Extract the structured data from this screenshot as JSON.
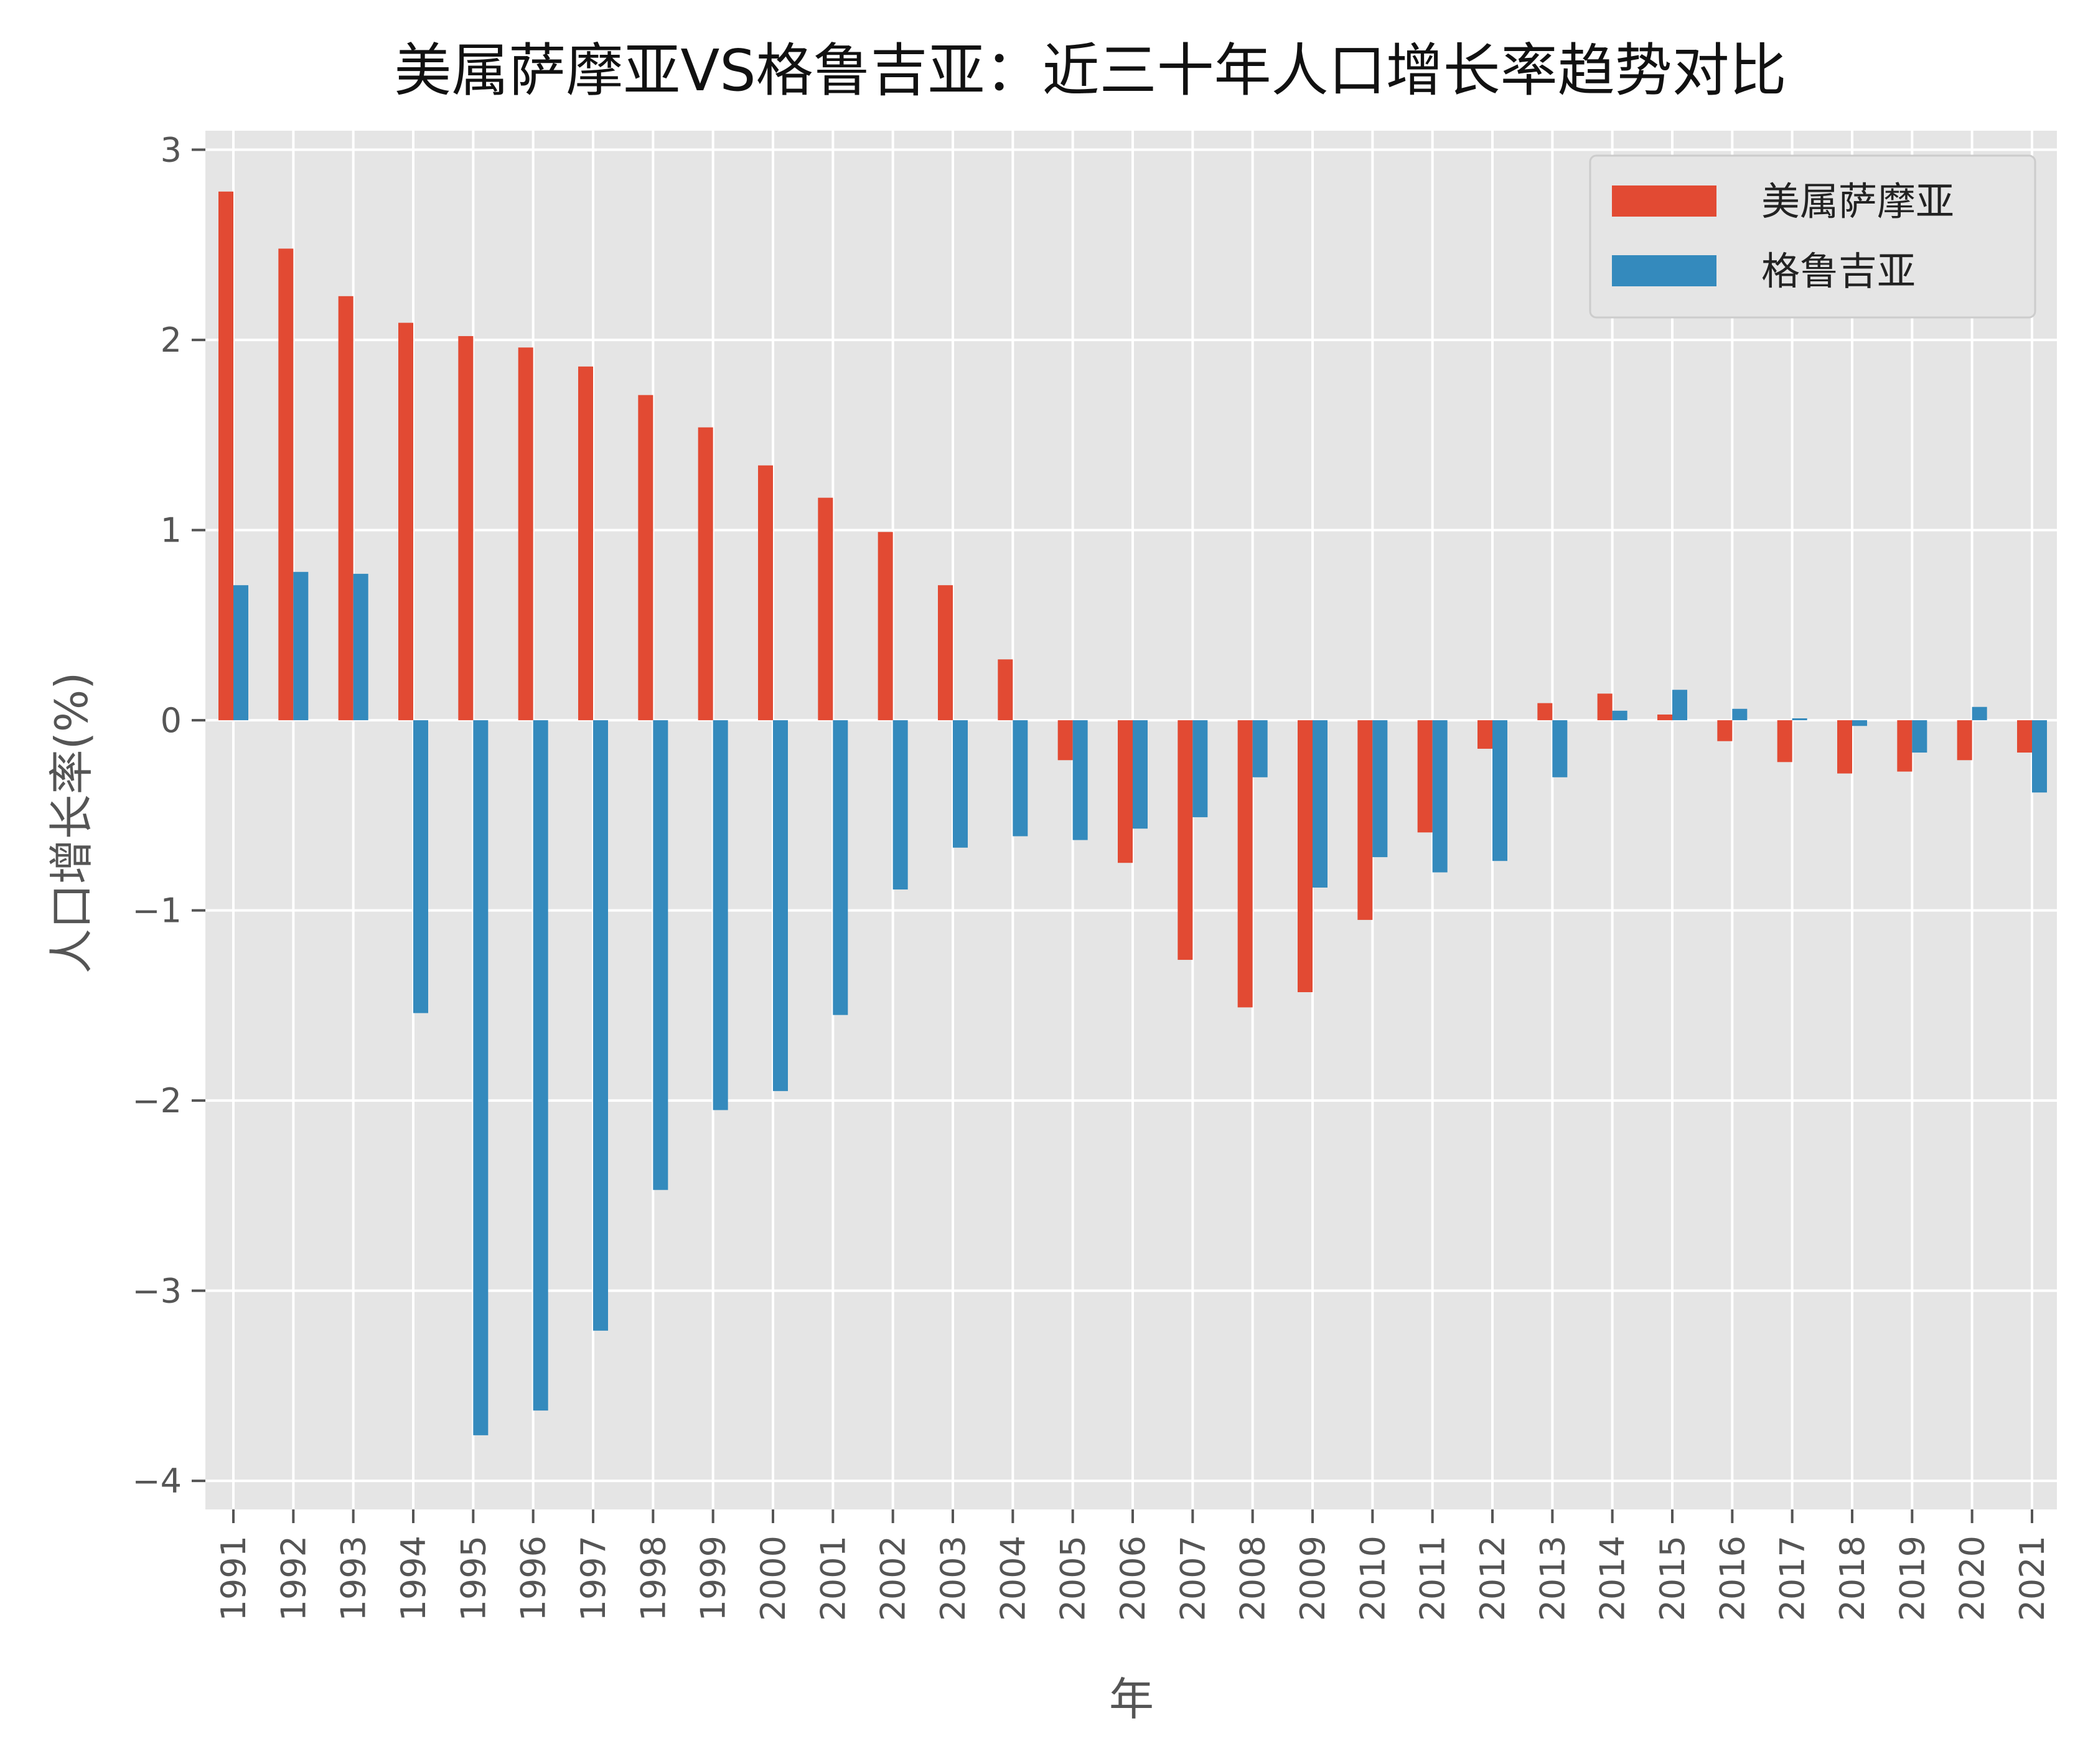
{
  "chart_data": {
    "type": "bar",
    "title": "美属萨摩亚VS格鲁吉亚：近三十年人口增长率趋势对比",
    "xlabel": "年",
    "ylabel": "人口增长率(%)",
    "ylim": [
      -4.15,
      3.1
    ],
    "yticks": [
      -4,
      -3,
      -2,
      -1,
      0,
      1,
      2,
      3
    ],
    "ytick_labels": [
      "−4",
      "−3",
      "−2",
      "−1",
      "0",
      "1",
      "2",
      "3"
    ],
    "grid": true,
    "legend_position": "top-right",
    "categories": [
      "1991",
      "1992",
      "1993",
      "1994",
      "1995",
      "1996",
      "1997",
      "1998",
      "1999",
      "2000",
      "2001",
      "2002",
      "2003",
      "2004",
      "2005",
      "2006",
      "2007",
      "2008",
      "2009",
      "2010",
      "2011",
      "2012",
      "2013",
      "2014",
      "2015",
      "2016",
      "2017",
      "2018",
      "2019",
      "2020",
      "2021"
    ],
    "series": [
      {
        "name": "美属萨摩亚",
        "color": "#E24A33",
        "values": [
          2.78,
          2.48,
          2.23,
          2.09,
          2.02,
          1.96,
          1.86,
          1.71,
          1.54,
          1.34,
          1.17,
          0.99,
          0.71,
          0.32,
          -0.21,
          -0.75,
          -1.26,
          -1.51,
          -1.43,
          -1.05,
          -0.59,
          -0.15,
          0.09,
          0.14,
          0.03,
          -0.11,
          -0.22,
          -0.28,
          -0.27,
          -0.21,
          -0.17
        ]
      },
      {
        "name": "格鲁吉亚",
        "color": "#348ABD",
        "values": [
          0.71,
          0.78,
          0.77,
          -1.54,
          -3.76,
          -3.63,
          -3.21,
          -2.47,
          -2.05,
          -1.95,
          -1.55,
          -0.89,
          -0.67,
          -0.61,
          -0.63,
          -0.57,
          -0.51,
          -0.3,
          -0.88,
          -0.72,
          -0.8,
          -0.74,
          -0.3,
          0.05,
          0.16,
          0.06,
          0.01,
          -0.03,
          -0.17,
          0.07,
          -0.38
        ]
      }
    ]
  },
  "colors": {
    "plot_background": "#E5E5E5",
    "grid": "#FFFFFF"
  }
}
